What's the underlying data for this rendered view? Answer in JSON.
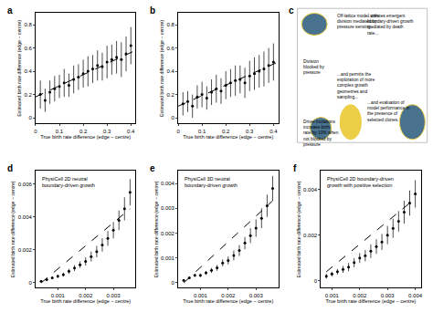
{
  "chart_data": [
    {
      "panel": "a",
      "type": "scatter",
      "xlabel": "True birth rate difference (edge − centre)",
      "ylabel": "Estimated birth rate difference (edge − centre)",
      "xlim": [
        0,
        0.42
      ],
      "ylim": [
        -0.05,
        0.9
      ],
      "xticks": [
        0,
        0.1,
        0.2,
        0.3,
        0.4
      ],
      "yticks": [
        0,
        0.2,
        0.4,
        0.6,
        0.8
      ],
      "series": [
        {
          "type": "scatter",
          "marker": "circle",
          "color": "#000000",
          "x": [
            0.02,
            0.04,
            0.06,
            0.08,
            0.1,
            0.12,
            0.14,
            0.16,
            0.18,
            0.2,
            0.22,
            0.24,
            0.26,
            0.28,
            0.3,
            0.32,
            0.34,
            0.36,
            0.38,
            0.4
          ],
          "values": [
            0.2,
            0.15,
            0.22,
            0.25,
            0.27,
            0.3,
            0.28,
            0.33,
            0.35,
            0.38,
            0.4,
            0.42,
            0.45,
            0.44,
            0.48,
            0.5,
            0.52,
            0.5,
            0.55,
            0.62
          ],
          "error": [
            0.12,
            0.1,
            0.1,
            0.11,
            0.1,
            0.12,
            0.1,
            0.12,
            0.11,
            0.12,
            0.13,
            0.12,
            0.13,
            0.12,
            0.14,
            0.13,
            0.14,
            0.15,
            0.15,
            0.16
          ]
        },
        {
          "type": "line",
          "line_style": "dashed",
          "color": "#000000",
          "x": [
            0,
            0.42
          ],
          "values": [
            0.18,
            0.58
          ]
        }
      ]
    },
    {
      "panel": "b",
      "type": "scatter",
      "xlabel": "True birth rate difference (edge − centre)",
      "ylabel": "Estimated birth rate difference (edge − centre)",
      "xlim": [
        0,
        0.42
      ],
      "ylim": [
        -0.05,
        0.9
      ],
      "xticks": [
        0,
        0.1,
        0.2,
        0.3,
        0.4
      ],
      "yticks": [
        0,
        0.2,
        0.4,
        0.6,
        0.8
      ],
      "series": [
        {
          "type": "scatter",
          "marker": "circle",
          "color": "#000000",
          "x": [
            0.02,
            0.04,
            0.06,
            0.08,
            0.1,
            0.12,
            0.14,
            0.16,
            0.18,
            0.2,
            0.22,
            0.24,
            0.26,
            0.28,
            0.3,
            0.32,
            0.34,
            0.36,
            0.38,
            0.4
          ],
          "values": [
            0.12,
            0.14,
            0.1,
            0.18,
            0.2,
            0.17,
            0.22,
            0.25,
            0.23,
            0.28,
            0.3,
            0.32,
            0.33,
            0.3,
            0.36,
            0.38,
            0.4,
            0.42,
            0.45,
            0.48
          ],
          "error": [
            0.1,
            0.09,
            0.1,
            0.1,
            0.11,
            0.1,
            0.11,
            0.12,
            0.11,
            0.12,
            0.12,
            0.13,
            0.12,
            0.13,
            0.13,
            0.14,
            0.14,
            0.15,
            0.15,
            0.16
          ]
        },
        {
          "type": "line",
          "line_style": "dashed",
          "color": "#000000",
          "x": [
            0,
            0.42
          ],
          "values": [
            0.1,
            0.48
          ]
        }
      ]
    },
    {
      "panel": "d",
      "type": "scatter",
      "title": "PhysiCell 2D neutral boundary-driven growth",
      "xlabel": "True birth rate difference (edge − centre)",
      "ylabel": "Estimated birth rate difference (edge − centre)",
      "xlim": [
        0.0002,
        0.0038
      ],
      "ylim": [
        -0.0003,
        0.0068
      ],
      "xticks": [
        0.001,
        0.002,
        0.003
      ],
      "yticks": [
        0,
        0.002,
        0.004,
        0.006
      ],
      "series": [
        {
          "type": "scatter",
          "marker": "circle",
          "color": "#000000",
          "x": [
            0.0004,
            0.0006,
            0.0008,
            0.001,
            0.0012,
            0.0014,
            0.0016,
            0.0018,
            0.002,
            0.0022,
            0.0024,
            0.0026,
            0.0028,
            0.003,
            0.0032,
            0.0034,
            0.0036
          ],
          "values": [
            0.0001,
            0.0002,
            0.0003,
            0.0004,
            0.0005,
            0.0007,
            0.0009,
            0.0011,
            0.0013,
            0.0016,
            0.0019,
            0.0023,
            0.0027,
            0.0032,
            0.0038,
            0.0045,
            0.0055
          ],
          "error": [
            5e-05,
            6e-05,
            8e-05,
            0.0001,
            0.00012,
            0.00015,
            0.00018,
            0.0002,
            0.00025,
            0.0003,
            0.00035,
            0.0004,
            0.00045,
            0.0005,
            0.0006,
            0.0007,
            0.0008
          ]
        },
        {
          "type": "line",
          "line_style": "dashed",
          "color": "#000000",
          "x": [
            0.0004,
            0.0036
          ],
          "values": [
            0,
            0.0045
          ]
        }
      ]
    },
    {
      "panel": "e",
      "type": "scatter",
      "title": "PhysiCell 3D neutral boundary-driven growth",
      "xlabel": "True birth rate difference (edge − centre)",
      "ylabel": "Estimated birth rate difference (edge − centre)",
      "xlim": [
        0.0002,
        0.0038
      ],
      "ylim": [
        -0.0002,
        0.0045
      ],
      "xticks": [
        0.001,
        0.002,
        0.003
      ],
      "yticks": [
        0,
        0.001,
        0.002,
        0.003,
        0.004
      ],
      "series": [
        {
          "type": "scatter",
          "marker": "circle",
          "color": "#000000",
          "x": [
            0.0004,
            0.0006,
            0.0008,
            0.001,
            0.0012,
            0.0014,
            0.0016,
            0.0018,
            0.002,
            0.0022,
            0.0024,
            0.0026,
            0.0028,
            0.003,
            0.0032,
            0.0034,
            0.0036
          ],
          "values": [
            0.0001,
            0.0002,
            0.0003,
            0.0003,
            0.0004,
            0.0005,
            0.0006,
            0.0008,
            0.0009,
            0.0011,
            0.0013,
            0.0016,
            0.0019,
            0.0022,
            0.0026,
            0.0031,
            0.0038
          ],
          "error": [
            4e-05,
            5e-05,
            6e-05,
            7e-05,
            8e-05,
            0.0001,
            0.00012,
            0.00014,
            0.00016,
            0.0002,
            0.00022,
            0.00025,
            0.0003,
            0.00035,
            0.0004,
            0.00045,
            0.0005
          ]
        },
        {
          "type": "line",
          "line_style": "dashed",
          "color": "#000000",
          "x": [
            0.0004,
            0.0036
          ],
          "values": [
            0,
            0.0033
          ]
        }
      ]
    },
    {
      "panel": "f",
      "type": "scatter",
      "title": "PhysiCell 2D boundary-driven growth with positive selection",
      "xlabel": "True birth rate difference (edge − centre)",
      "ylabel": "Estimated birth rate difference (edge − centre)",
      "xlim": [
        0.0006,
        0.0042
      ],
      "ylim": [
        -0.0003,
        0.0048
      ],
      "xticks": [
        0.001,
        0.002,
        0.003,
        0.004
      ],
      "yticks": [
        0,
        0.002,
        0.004
      ],
      "series": [
        {
          "type": "scatter",
          "marker": "circle",
          "color": "#000000",
          "x": [
            0.0008,
            0.001,
            0.0012,
            0.0014,
            0.0016,
            0.0018,
            0.002,
            0.0022,
            0.0024,
            0.0026,
            0.0028,
            0.003,
            0.0032,
            0.0034,
            0.0036,
            0.0038,
            0.004
          ],
          "values": [
            0.0002,
            0.0003,
            0.0004,
            0.0005,
            0.0006,
            0.0008,
            0.001,
            0.0011,
            0.0013,
            0.0015,
            0.0017,
            0.002,
            0.0023,
            0.0026,
            0.003,
            0.0034,
            0.0038
          ],
          "error": [
            0.0001,
            0.0001,
            0.00012,
            0.00015,
            0.00018,
            0.0002,
            0.00022,
            0.00025,
            0.0003,
            0.00032,
            0.00035,
            0.0004,
            0.00042,
            0.00045,
            0.0005,
            0.00055,
            0.0006
          ]
        },
        {
          "type": "line",
          "line_style": "dashed",
          "color": "#000000",
          "x": [
            0.0008,
            0.004
          ],
          "values": [
            0.0004,
            0.0036
          ]
        }
      ]
    }
  ],
  "diagram": {
    "panel": "c",
    "texts": [
      "Off-lattice model with division mediated by pressure sensing...",
      "...creates emergent boundary-driven growth mediated by death rate...",
      "Division blocked by pressure",
      "...and permits the exploration of more complex growth geometries and sampling...",
      "...and evaluation of model performance in the presence of selected clones.",
      "Driver mutations increase birth rate by 10% when not blocked by pressure"
    ]
  }
}
